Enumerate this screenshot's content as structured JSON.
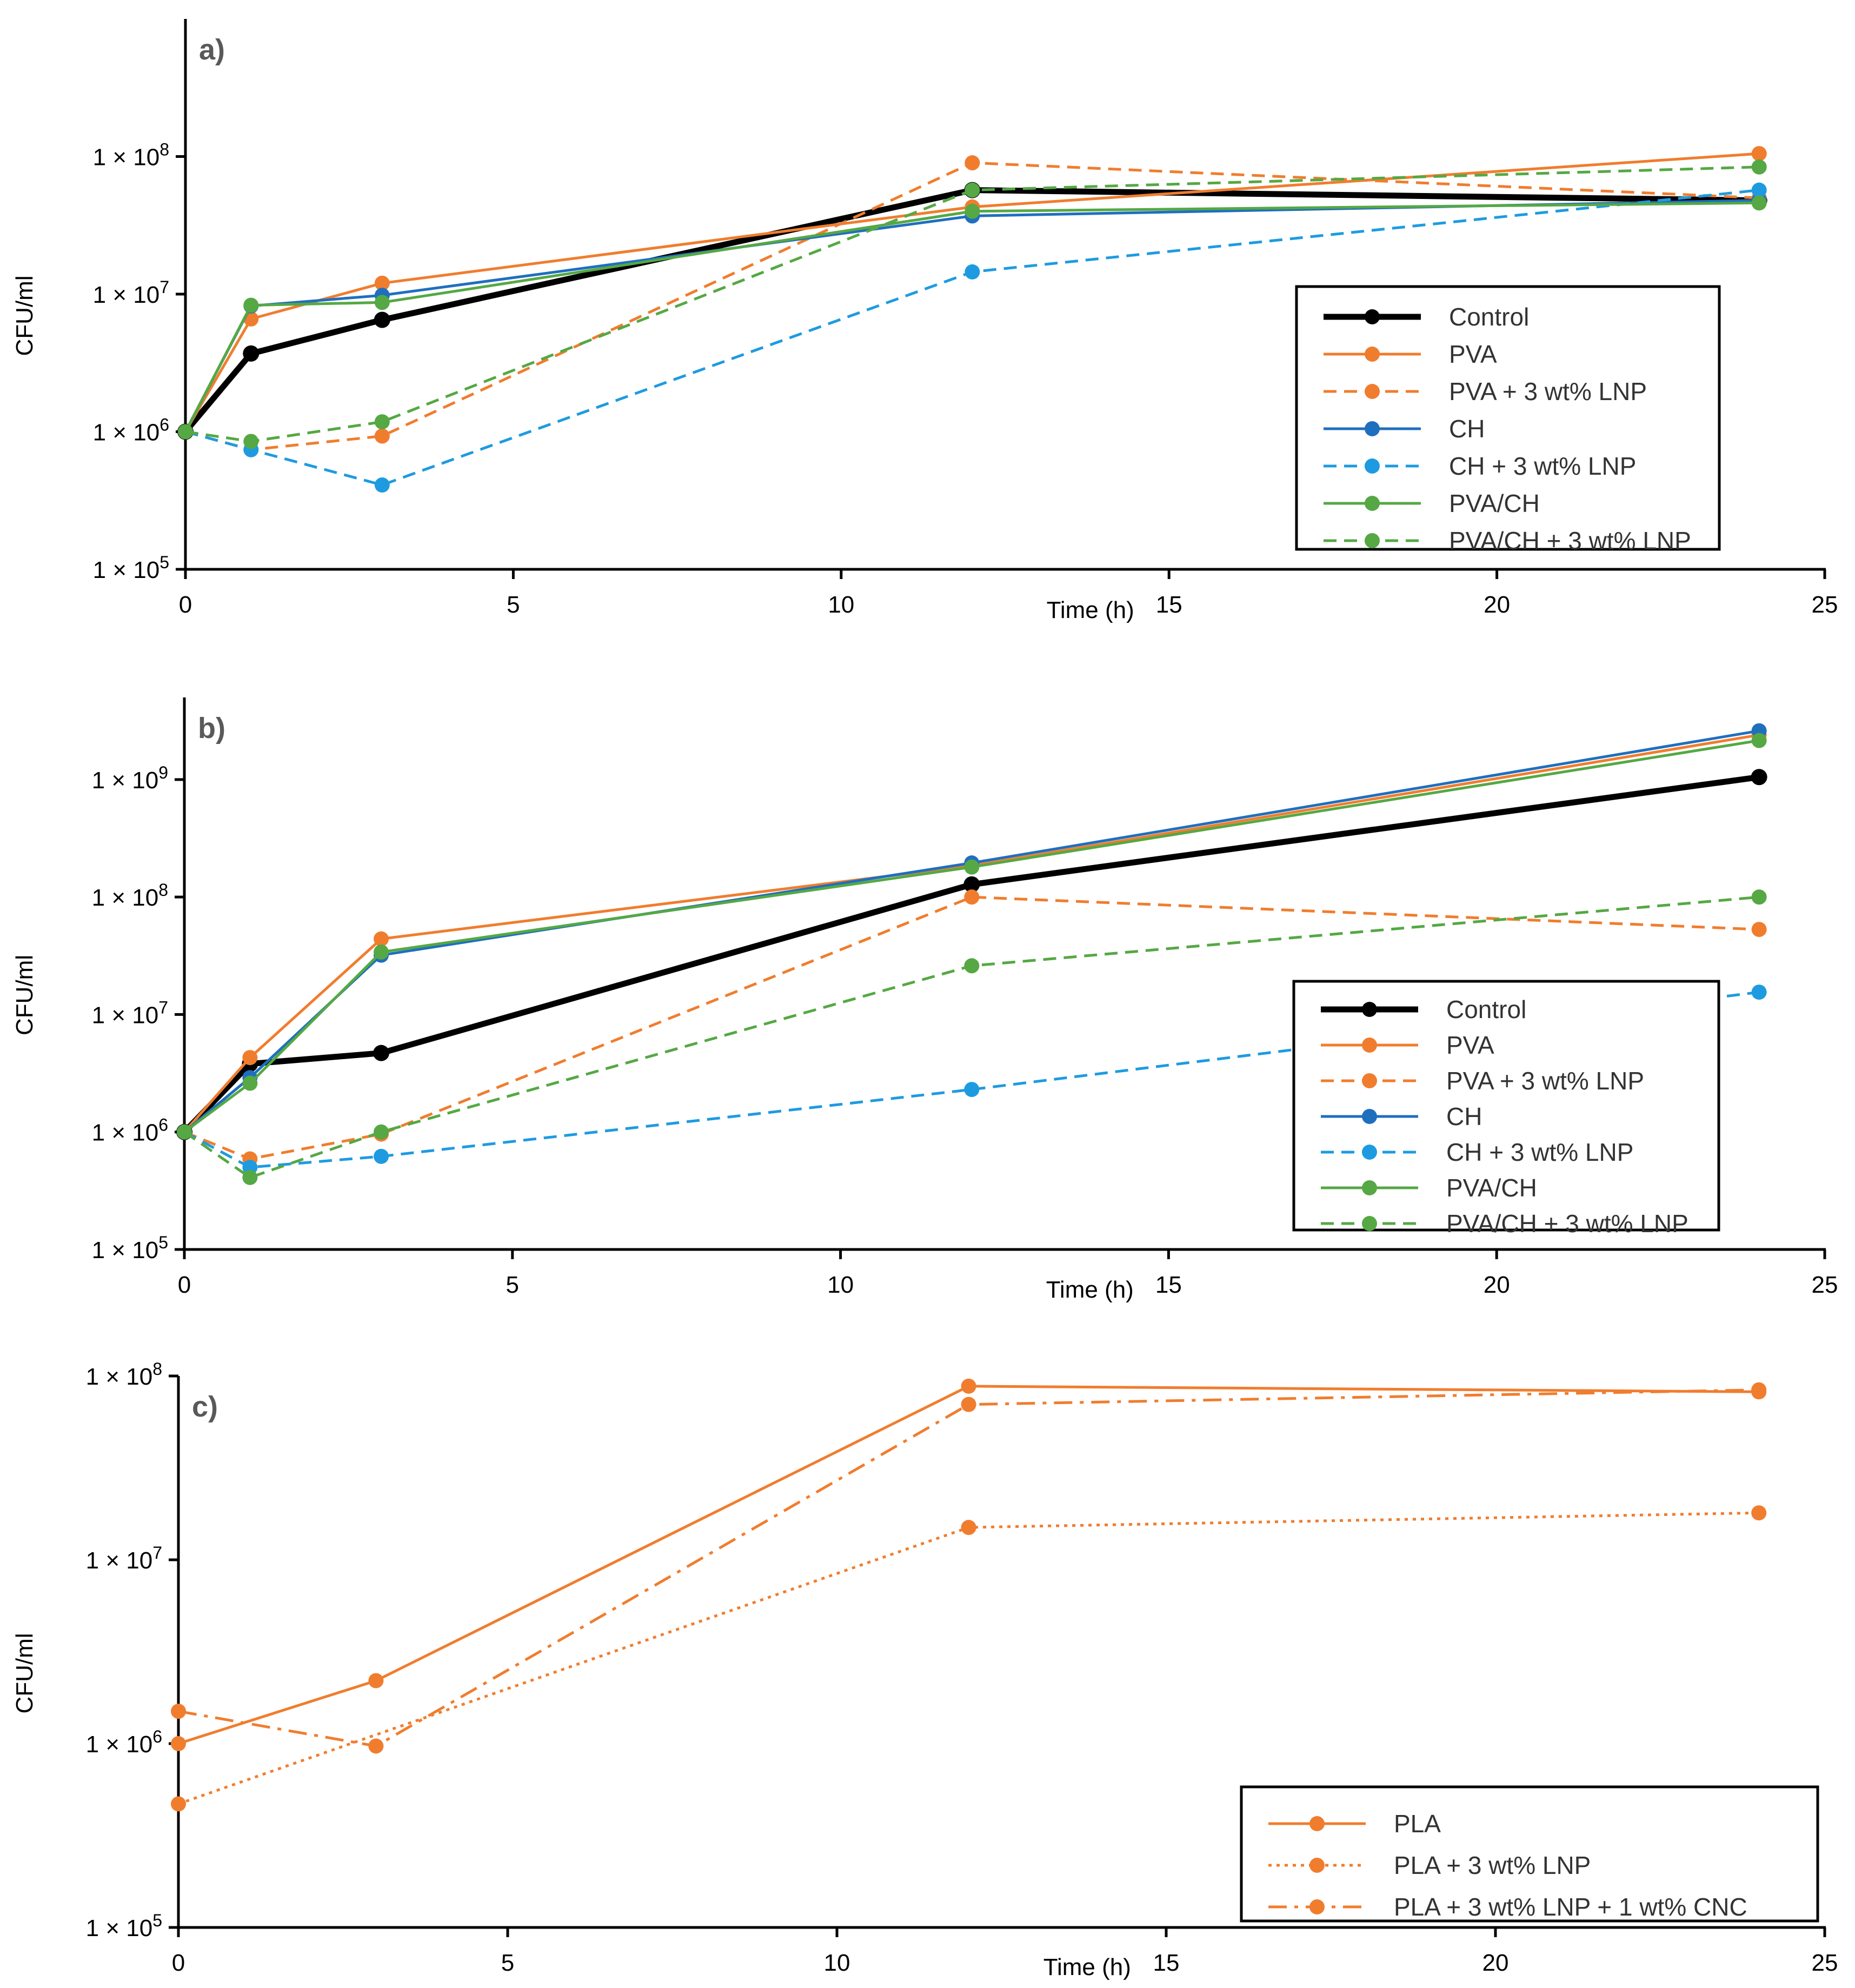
{
  "chart_data": [
    {
      "type": "line",
      "panel_label": "a)",
      "xlabel": "Time (h)",
      "ylabel": "CFU/ml",
      "xlim": [
        0,
        25
      ],
      "ylim": [
        100000,
        1000000000
      ],
      "yscale": "log",
      "x_ticks": [
        0,
        5,
        10,
        15,
        20,
        25
      ],
      "y_ticks": [
        {
          "value": 100000,
          "mantissa": "1 × 10",
          "exp": "5"
        },
        {
          "value": 1000000,
          "mantissa": "1 × 10",
          "exp": "6"
        },
        {
          "value": 10000000,
          "mantissa": "1 × 10",
          "exp": "7"
        },
        {
          "value": 100000000,
          "mantissa": "1 × 10",
          "exp": "8"
        }
      ],
      "legend_position": "right-middle",
      "series": [
        {
          "name": "Control",
          "color": "#000000",
          "style": "solid",
          "bold": true,
          "x": [
            0,
            1,
            3,
            12,
            24
          ],
          "values": [
            1000000,
            3700000,
            6500000,
            57000000,
            48000000
          ]
        },
        {
          "name": "PVA",
          "color": "#F07D2E",
          "style": "solid",
          "x": [
            0,
            1,
            3,
            12,
            24
          ],
          "values": [
            1000000,
            6600000,
            12000000,
            43000000,
            105000000
          ]
        },
        {
          "name": "PVA + 3 wt% LNP",
          "color": "#F07D2E",
          "style": "dashed",
          "x": [
            0,
            1,
            3,
            12,
            24
          ],
          "values": [
            1000000,
            740000,
            930000,
            90000000,
            50000000
          ]
        },
        {
          "name": "CH",
          "color": "#1F6FBF",
          "style": "solid",
          "x": [
            0,
            1,
            3,
            12,
            24
          ],
          "values": [
            1000000,
            8200000,
            9800000,
            37000000,
            48000000
          ]
        },
        {
          "name": "CH + 3 wt% LNP",
          "color": "#1E9BE0",
          "style": "dashed",
          "x": [
            0,
            1,
            3,
            12,
            24
          ],
          "values": [
            1000000,
            740000,
            410000,
            14500000,
            57000000
          ]
        },
        {
          "name": "PVA/CH",
          "color": "#55A844",
          "style": "solid",
          "x": [
            0,
            1,
            3,
            12,
            24
          ],
          "values": [
            1000000,
            8300000,
            8700000,
            40000000,
            46000000
          ]
        },
        {
          "name": "PVA/CH + 3 wt% LNP",
          "color": "#55A844",
          "style": "dashed",
          "x": [
            0,
            1,
            3,
            12,
            24
          ],
          "values": [
            1000000,
            850000,
            1180000,
            57000000,
            84000000
          ]
        }
      ]
    },
    {
      "type": "line",
      "panel_label": "b)",
      "xlabel": "Time (h)",
      "ylabel": "CFU/ml",
      "xlim": [
        0,
        25
      ],
      "ylim": [
        100000,
        5000000000
      ],
      "yscale": "log",
      "x_ticks": [
        0,
        5,
        10,
        15,
        20,
        25
      ],
      "y_ticks": [
        {
          "value": 100000,
          "mantissa": "1 × 10",
          "exp": "5"
        },
        {
          "value": 1000000,
          "mantissa": "1 × 10",
          "exp": "6"
        },
        {
          "value": 10000000,
          "mantissa": "1 × 10",
          "exp": "7"
        },
        {
          "value": 100000000,
          "mantissa": "1 × 10",
          "exp": "8"
        },
        {
          "value": 1000000000,
          "mantissa": "1 × 10",
          "exp": "9"
        }
      ],
      "legend_position": "right-bottom",
      "series": [
        {
          "name": "Control",
          "color": "#000000",
          "style": "solid",
          "bold": true,
          "x": [
            0,
            1,
            3,
            12,
            24
          ],
          "values": [
            1000000,
            3800000,
            4700000,
            128000000,
            1050000000
          ]
        },
        {
          "name": "PVA",
          "color": "#F07D2E",
          "style": "solid",
          "x": [
            0,
            1,
            3,
            12,
            24
          ],
          "values": [
            1000000,
            4300000,
            44000000,
            185000000,
            2400000000
          ]
        },
        {
          "name": "PVA + 3 wt% LNP",
          "color": "#F07D2E",
          "style": "dashed",
          "x": [
            0,
            1,
            3,
            12,
            24
          ],
          "values": [
            1000000,
            590000,
            960000,
            100000000,
            53000000
          ]
        },
        {
          "name": "CH",
          "color": "#1F6FBF",
          "style": "solid",
          "x": [
            0,
            1,
            3,
            12,
            24
          ],
          "values": [
            1000000,
            2900000,
            32000000,
            195000000,
            2600000000
          ]
        },
        {
          "name": "CH + 3 wt% LNP",
          "color": "#1E9BE0",
          "style": "dashed",
          "x": [
            0,
            1,
            3,
            12,
            24
          ],
          "values": [
            1000000,
            500000,
            620000,
            2300000,
            15500000
          ]
        },
        {
          "name": "PVA/CH",
          "color": "#55A844",
          "style": "solid",
          "x": [
            0,
            1,
            3,
            12,
            24
          ],
          "values": [
            1000000,
            2600000,
            34000000,
            180000000,
            2150000000
          ]
        },
        {
          "name": "PVA/CH + 3 wt% LNP",
          "color": "#55A844",
          "style": "dashed",
          "x": [
            0,
            1,
            3,
            12,
            24
          ],
          "values": [
            1000000,
            410000,
            1000000,
            26000000,
            100000000
          ]
        }
      ]
    },
    {
      "type": "line",
      "panel_label": "c)",
      "xlabel": "Time (h)",
      "ylabel": "CFU/ml",
      "xlim": [
        0,
        25
      ],
      "ylim": [
        100000,
        100000000
      ],
      "yscale": "log",
      "x_ticks": [
        0,
        5,
        10,
        15,
        20,
        25
      ],
      "y_ticks": [
        {
          "value": 100000,
          "mantissa": "1 × 10",
          "exp": "5"
        },
        {
          "value": 1000000,
          "mantissa": "1 × 10",
          "exp": "6"
        },
        {
          "value": 10000000,
          "mantissa": "1 × 10",
          "exp": "7"
        },
        {
          "value": 100000000,
          "mantissa": "1 × 10",
          "exp": "8"
        }
      ],
      "legend_position": "bottom-right",
      "series": [
        {
          "name": "PLA",
          "color": "#F07D2E",
          "style": "solid",
          "x": [
            0,
            3,
            12,
            24
          ],
          "values": [
            1000000,
            2200000,
            88000000,
            82000000
          ]
        },
        {
          "name": "PLA + 3 wt% LNP",
          "color": "#F07D2E",
          "style": "dotted",
          "x": [
            0,
            12,
            24
          ],
          "values": [
            470000,
            15000000,
            18000000
          ]
        },
        {
          "name": "PLA + 3 wt% LNP + 1 wt% CNC",
          "color": "#F07D2E",
          "style": "dashdot",
          "x": [
            0,
            3,
            12,
            24
          ],
          "values": [
            1500000,
            970000,
            70000000,
            84000000
          ]
        }
      ]
    }
  ]
}
